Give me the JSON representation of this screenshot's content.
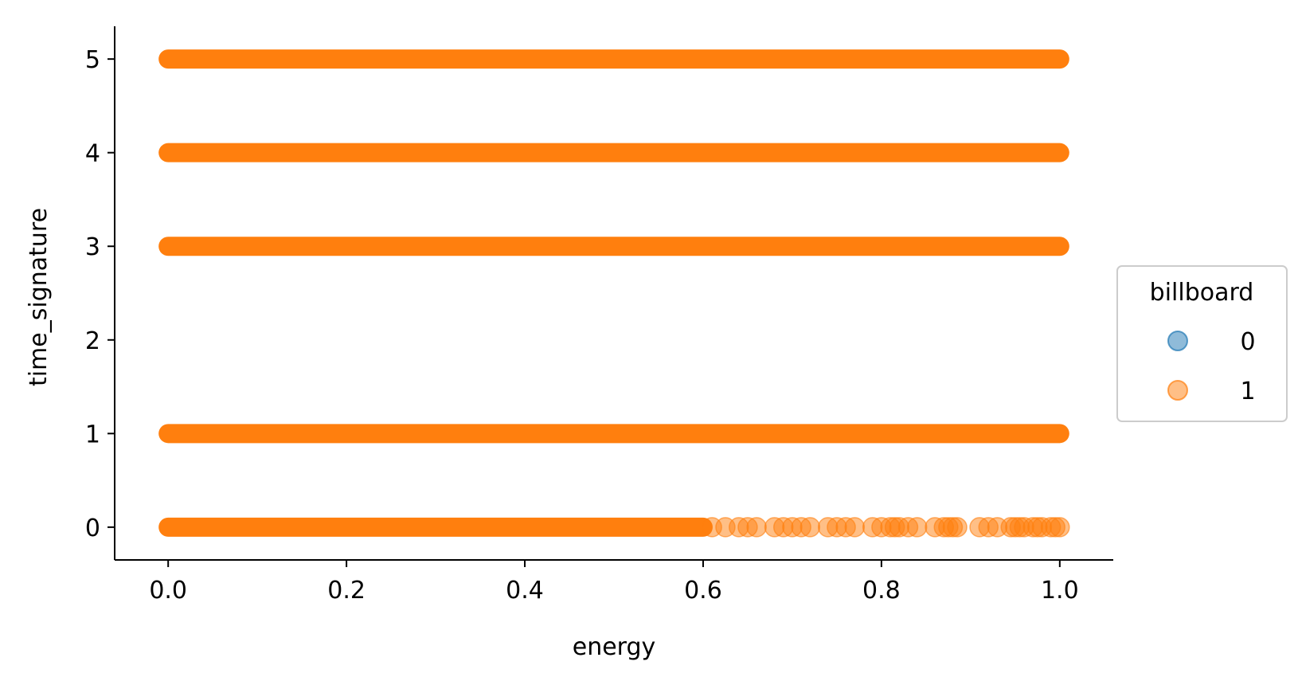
{
  "chart_data": {
    "type": "scatter",
    "title": "",
    "xlabel": "energy",
    "ylabel": "time_signature",
    "xlim": [
      -0.06,
      1.06
    ],
    "ylim": [
      -0.35,
      5.35
    ],
    "xticks": [
      "0.0",
      "0.2",
      "0.4",
      "0.6",
      "0.8",
      "1.0"
    ],
    "yticks": [
      "0",
      "1",
      "2",
      "3",
      "4",
      "5"
    ],
    "grid": false,
    "marker_alpha": 0.5,
    "legend": {
      "title": "billboard",
      "placement": "center-right outside",
      "entries": [
        {
          "label": "0",
          "color": "#1f77b4"
        },
        {
          "label": "1",
          "color": "#ff7f0e"
        }
      ]
    },
    "series": [
      {
        "name": "0",
        "color": "#1f77b4",
        "bands": []
      },
      {
        "name": "1",
        "color": "#ff7f0e",
        "bands": [
          {
            "y": 5,
            "x_min": 0.0,
            "x_max": 1.0
          },
          {
            "y": 4,
            "x_min": 0.0,
            "x_max": 1.0
          },
          {
            "y": 3,
            "x_min": 0.0,
            "x_max": 1.0
          },
          {
            "y": 1,
            "x_min": 0.0,
            "x_max": 1.0
          },
          {
            "y": 0,
            "x_min": 0.0,
            "x_max": 0.6
          }
        ],
        "sparse_points": [
          {
            "x": 0.61,
            "y": 0
          },
          {
            "x": 0.625,
            "y": 0
          },
          {
            "x": 0.64,
            "y": 0
          },
          {
            "x": 0.65,
            "y": 0
          },
          {
            "x": 0.66,
            "y": 0
          },
          {
            "x": 0.68,
            "y": 0
          },
          {
            "x": 0.69,
            "y": 0
          },
          {
            "x": 0.7,
            "y": 0
          },
          {
            "x": 0.71,
            "y": 0
          },
          {
            "x": 0.72,
            "y": 0
          },
          {
            "x": 0.74,
            "y": 0
          },
          {
            "x": 0.75,
            "y": 0
          },
          {
            "x": 0.76,
            "y": 0
          },
          {
            "x": 0.77,
            "y": 0
          },
          {
            "x": 0.79,
            "y": 0
          },
          {
            "x": 0.8,
            "y": 0
          },
          {
            "x": 0.81,
            "y": 0
          },
          {
            "x": 0.815,
            "y": 0
          },
          {
            "x": 0.82,
            "y": 0
          },
          {
            "x": 0.83,
            "y": 0
          },
          {
            "x": 0.84,
            "y": 0
          },
          {
            "x": 0.86,
            "y": 0
          },
          {
            "x": 0.87,
            "y": 0
          },
          {
            "x": 0.875,
            "y": 0
          },
          {
            "x": 0.88,
            "y": 0
          },
          {
            "x": 0.885,
            "y": 0
          },
          {
            "x": 0.91,
            "y": 0
          },
          {
            "x": 0.92,
            "y": 0
          },
          {
            "x": 0.93,
            "y": 0
          },
          {
            "x": 0.945,
            "y": 0
          },
          {
            "x": 0.95,
            "y": 0
          },
          {
            "x": 0.955,
            "y": 0
          },
          {
            "x": 0.96,
            "y": 0
          },
          {
            "x": 0.97,
            "y": 0
          },
          {
            "x": 0.975,
            "y": 0
          },
          {
            "x": 0.98,
            "y": 0
          },
          {
            "x": 0.99,
            "y": 0
          },
          {
            "x": 0.995,
            "y": 0
          },
          {
            "x": 1.0,
            "y": 0
          }
        ]
      }
    ]
  }
}
